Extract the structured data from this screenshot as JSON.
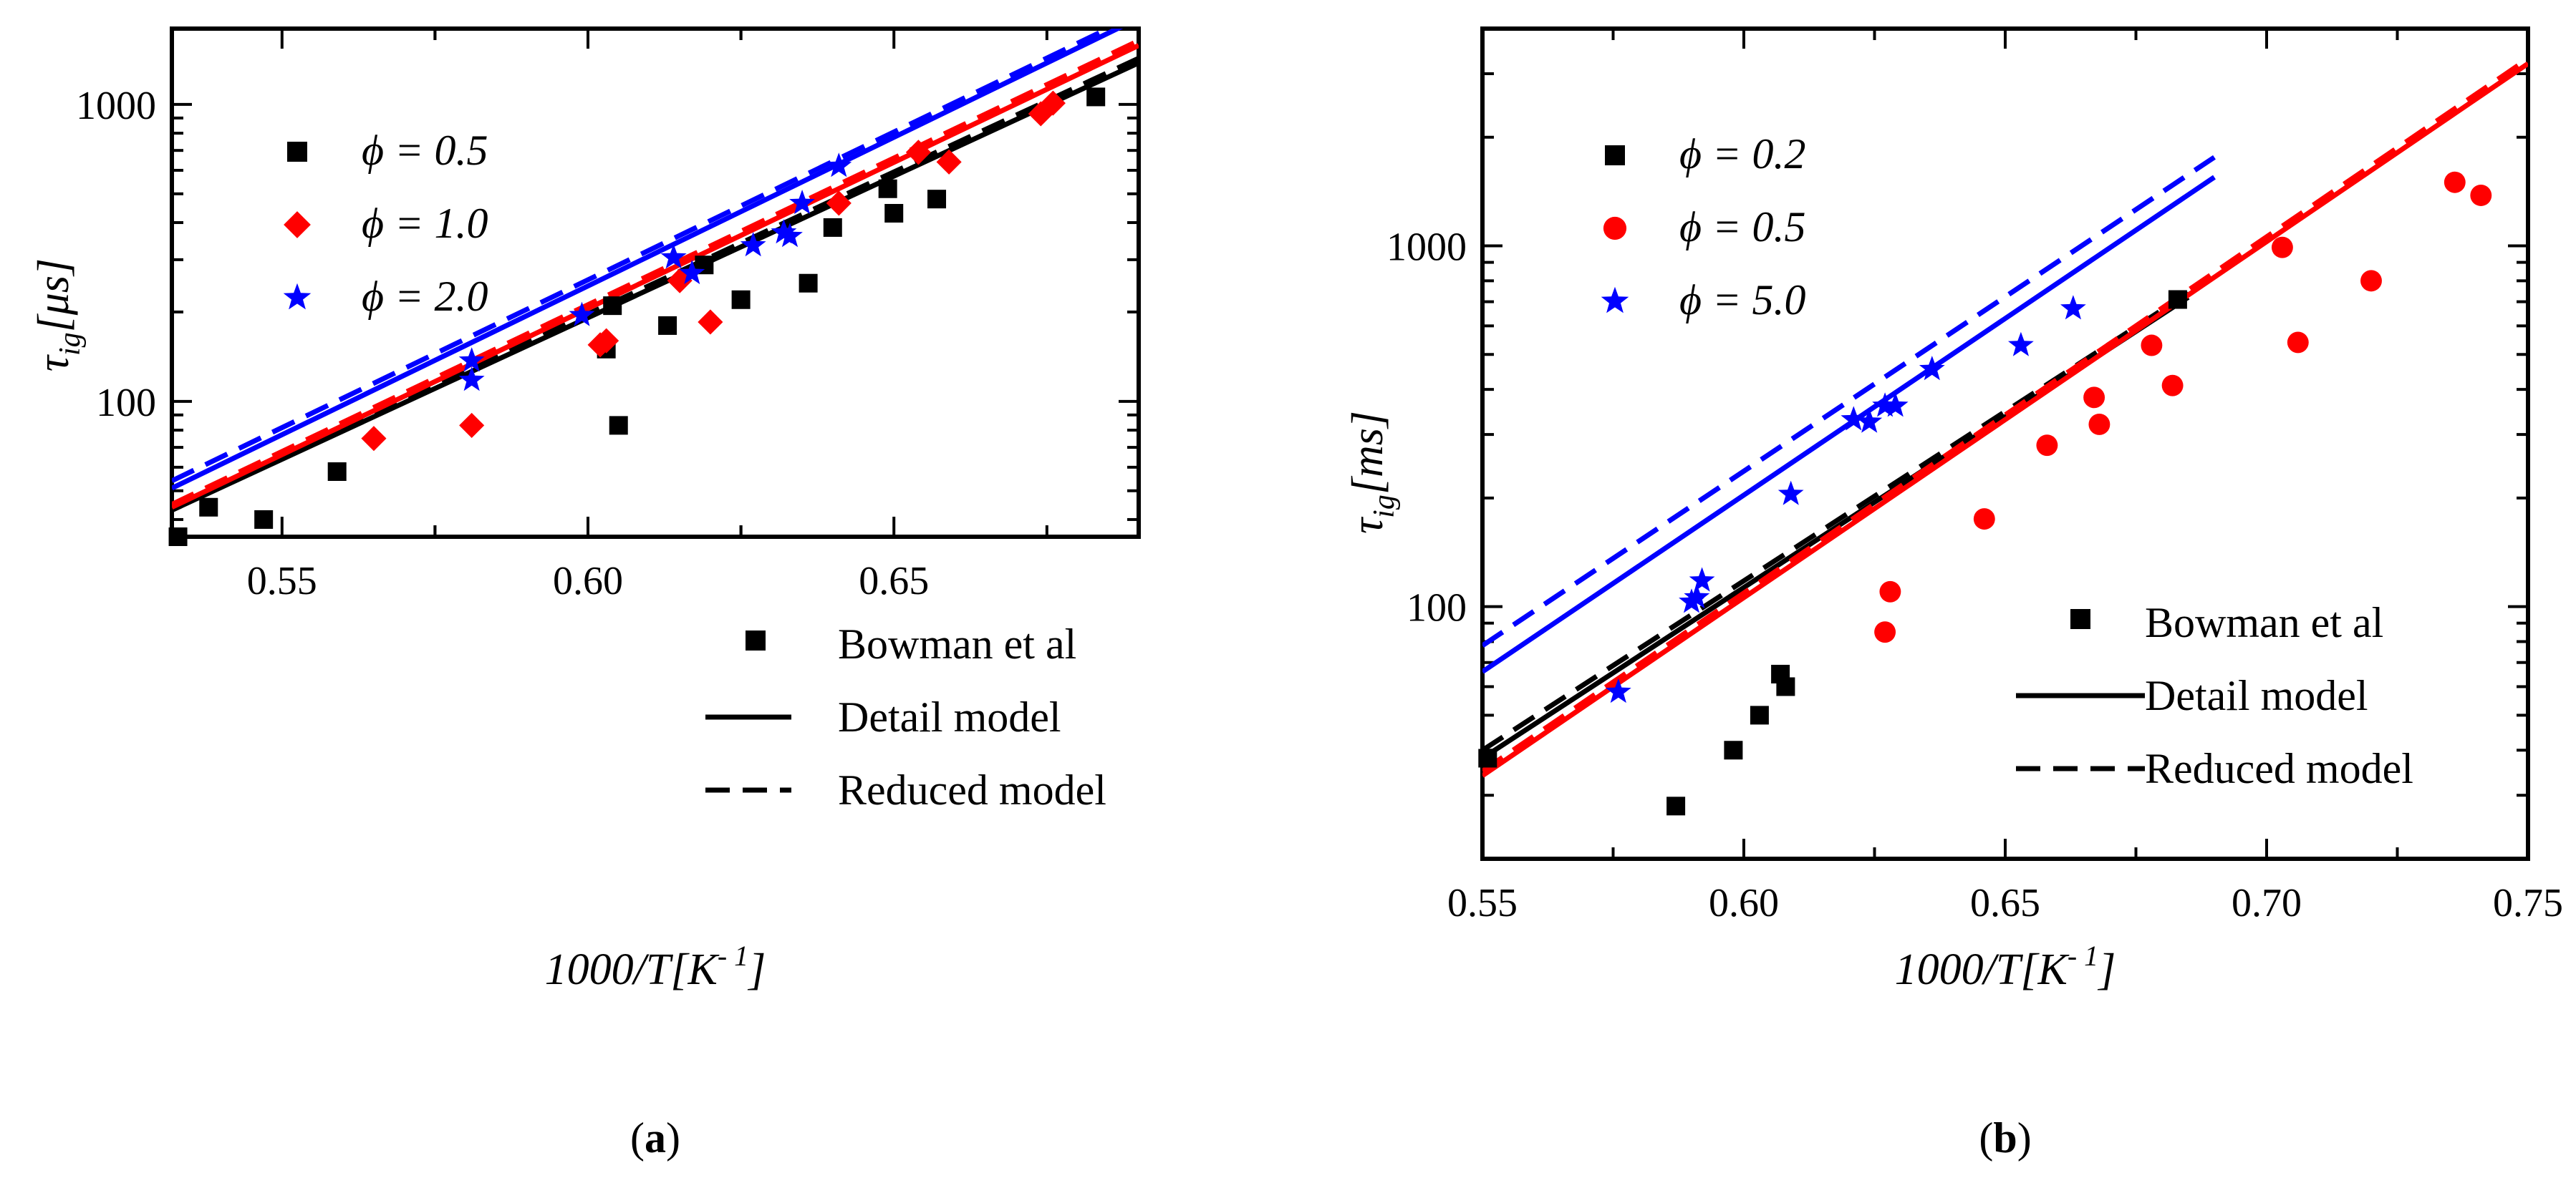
{
  "chart_data": [
    {
      "type": "scatter",
      "panel_label": "(a)",
      "panel_letter": "a",
      "xlabel": "1000/T[K⁻¹]",
      "xlabel_main": "1000/T[K",
      "xlabel_sup": "- 1",
      "xlabel_close": "]",
      "ylabel_main": "τ",
      "ylabel_sub": "ig",
      "ylabel_unit": "[μs]",
      "xlim": [
        0.532,
        0.69
      ],
      "ylim": [
        35,
        1800
      ],
      "yscale": "log",
      "xticks": [
        0.55,
        0.6,
        0.65
      ],
      "xtick_labels": [
        "0.55",
        "0.60",
        "0.65"
      ],
      "yticks": [
        100,
        1000
      ],
      "ytick_labels": [
        "100",
        "1000"
      ],
      "legend_position": "top-left",
      "colors": {
        "phi_low": "#000000",
        "phi_mid": "#ff0000",
        "phi_high": "#0000ff"
      },
      "series": [
        {
          "name": "ϕ = 0.5",
          "marker": "square",
          "color": "#000000",
          "points": [
            [
              0.533,
              35
            ],
            [
              0.538,
              44
            ],
            [
              0.547,
              40
            ],
            [
              0.559,
              58
            ],
            [
              0.603,
              150
            ],
            [
              0.604,
              210
            ],
            [
              0.605,
              83
            ],
            [
              0.613,
              180
            ],
            [
              0.619,
              288
            ],
            [
              0.625,
              220
            ],
            [
              0.636,
              250
            ],
            [
              0.64,
              385
            ],
            [
              0.649,
              520
            ],
            [
              0.65,
              430
            ],
            [
              0.657,
              480
            ],
            [
              0.683,
              1060
            ]
          ]
        },
        {
          "name": "ϕ = 1.0",
          "marker": "diamond",
          "color": "#ff0000",
          "points": [
            [
              0.565,
              75
            ],
            [
              0.581,
              83
            ],
            [
              0.602,
              155
            ],
            [
              0.603,
              160
            ],
            [
              0.615,
              255
            ],
            [
              0.62,
              185
            ],
            [
              0.641,
              465
            ],
            [
              0.654,
              690
            ],
            [
              0.659,
              640
            ],
            [
              0.674,
              930
            ],
            [
              0.676,
              1010
            ]
          ]
        },
        {
          "name": "ϕ = 2.0",
          "marker": "star",
          "color": "#0000ff",
          "points": [
            [
              0.581,
              118
            ],
            [
              0.581,
              137
            ],
            [
              0.599,
              195
            ],
            [
              0.614,
              305
            ],
            [
              0.617,
              270
            ],
            [
              0.627,
              335
            ],
            [
              0.632,
              370
            ],
            [
              0.633,
              360
            ],
            [
              0.635,
              465
            ],
            [
              0.641,
              620
            ]
          ]
        }
      ],
      "lines": [
        {
          "color": "#000000",
          "style": "solid",
          "x": [
            0.532,
            0.69
          ],
          "y": [
            43,
            1380
          ]
        },
        {
          "color": "#000000",
          "style": "dashed",
          "x": [
            0.532,
            0.69
          ],
          "y": [
            44,
            1430
          ]
        },
        {
          "color": "#ff0000",
          "style": "solid",
          "x": [
            0.532,
            0.69
          ],
          "y": [
            44,
            1580
          ]
        },
        {
          "color": "#ff0000",
          "style": "dashed",
          "x": [
            0.532,
            0.69
          ],
          "y": [
            45,
            1640
          ]
        },
        {
          "color": "#0000ff",
          "style": "solid",
          "x": [
            0.532,
            0.69
          ],
          "y": [
            51,
            1950
          ]
        },
        {
          "color": "#0000ff",
          "style": "dashed",
          "x": [
            0.532,
            0.69
          ],
          "y": [
            54,
            2020
          ]
        }
      ],
      "legend_bottom": [
        {
          "label": "Bowman et al",
          "kind": "marker"
        },
        {
          "label": "Detail model",
          "kind": "solid"
        },
        {
          "label": "Reduced model",
          "kind": "dashed"
        }
      ]
    },
    {
      "type": "scatter",
      "panel_label": "(b)",
      "panel_letter": "b",
      "xlabel": "1000/T[K⁻¹]",
      "xlabel_main": "1000/T[K",
      "xlabel_sup": "- 1",
      "xlabel_close": "]",
      "ylabel_main": "τ",
      "ylabel_sub": "ig",
      "ylabel_unit": "[ms]",
      "xlim": [
        0.55,
        0.75
      ],
      "ylim": [
        20,
        4000
      ],
      "yscale": "log",
      "xticks": [
        0.55,
        0.6,
        0.65,
        0.7,
        0.75
      ],
      "xtick_labels": [
        "0.55",
        "0.60",
        "0.65",
        "0.70",
        "0.75"
      ],
      "yticks": [
        100,
        1000
      ],
      "ytick_labels": [
        "100",
        "1000"
      ],
      "legend_position": "top-left",
      "colors": {
        "phi_low": "#000000",
        "phi_mid": "#ff0000",
        "phi_high": "#0000ff"
      },
      "series": [
        {
          "name": "ϕ = 0.2",
          "marker": "square",
          "color": "#000000",
          "points": [
            [
              0.551,
              38
            ],
            [
              0.587,
              28
            ],
            [
              0.598,
              40
            ],
            [
              0.603,
              50
            ],
            [
              0.607,
              65
            ],
            [
              0.608,
              60
            ],
            [
              0.683,
              710
            ]
          ]
        },
        {
          "name": "ϕ = 0.5",
          "marker": "circle",
          "color": "#ff0000",
          "points": [
            [
              0.627,
              85
            ],
            [
              0.628,
              110
            ],
            [
              0.646,
              175
            ],
            [
              0.658,
              280
            ],
            [
              0.667,
              380
            ],
            [
              0.668,
              320
            ],
            [
              0.678,
              530
            ],
            [
              0.682,
              410
            ],
            [
              0.703,
              990
            ],
            [
              0.706,
              540
            ],
            [
              0.72,
              800
            ],
            [
              0.736,
              1500
            ],
            [
              0.741,
              1380
            ]
          ]
        },
        {
          "name": "ϕ = 5.0",
          "marker": "star",
          "color": "#0000ff",
          "points": [
            [
              0.576,
              58
            ],
            [
              0.59,
              103
            ],
            [
              0.591,
              106
            ],
            [
              0.592,
              118
            ],
            [
              0.609,
              205
            ],
            [
              0.621,
              330
            ],
            [
              0.624,
              325
            ],
            [
              0.627,
              360
            ],
            [
              0.629,
              360
            ],
            [
              0.636,
              455
            ],
            [
              0.653,
              530
            ],
            [
              0.663,
              670
            ]
          ]
        }
      ],
      "lines": [
        {
          "color": "#000000",
          "style": "solid",
          "x": [
            0.55,
            0.685
          ],
          "y": [
            38,
            720
          ]
        },
        {
          "color": "#000000",
          "style": "dashed",
          "x": [
            0.55,
            0.685
          ],
          "y": [
            40,
            740
          ]
        },
        {
          "color": "#ff0000",
          "style": "solid",
          "x": [
            0.55,
            0.75
          ],
          "y": [
            34,
            3200
          ]
        },
        {
          "color": "#ff0000",
          "style": "dashed",
          "x": [
            0.55,
            0.75
          ],
          "y": [
            35,
            3300
          ]
        },
        {
          "color": "#0000ff",
          "style": "solid",
          "x": [
            0.55,
            0.69
          ],
          "y": [
            66,
            1550
          ]
        },
        {
          "color": "#0000ff",
          "style": "dashed",
          "x": [
            0.55,
            0.69
          ],
          "y": [
            78,
            1760
          ]
        }
      ],
      "legend_bottom": [
        {
          "label": "Bowman et al",
          "kind": "marker"
        },
        {
          "label": "Detail model",
          "kind": "solid"
        },
        {
          "label": "Reduced model",
          "kind": "dashed"
        }
      ]
    }
  ]
}
